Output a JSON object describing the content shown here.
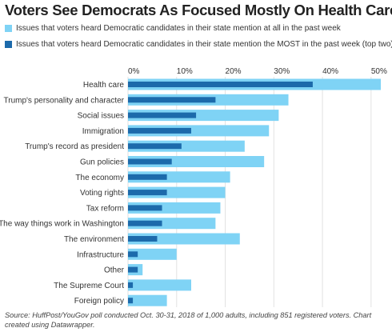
{
  "chart_data": {
    "type": "bar",
    "orientation": "horizontal",
    "title": "Voters See Democrats As Focused Mostly On Health Care",
    "categories": [
      "Health care",
      "Trump's personality and character",
      "Social issues",
      "Immigration",
      "Trump's record as president",
      "Gun policies",
      "The economy",
      "Voting rights",
      "Tax reform",
      "The way things work in Washington",
      "The environment",
      "Infrastructure",
      "Other",
      "The Supreme Court",
      "Foreign policy"
    ],
    "series": [
      {
        "name": "Issues that voters heard Democratic candidates in their state mention at all in the past week",
        "color": "#7fd3f5",
        "values": [
          52,
          33,
          31,
          29,
          24,
          28,
          21,
          20,
          19,
          18,
          23,
          10,
          3,
          13,
          8
        ]
      },
      {
        "name": "Issues that voters heard Democratic candidates in their state mention the MOST in the past week (top two)",
        "color": "#1c6aab",
        "values": [
          38,
          18,
          14,
          13,
          11,
          9,
          8,
          8,
          7,
          7,
          6,
          2,
          2,
          1,
          1
        ]
      }
    ],
    "xlim": [
      0,
      52
    ],
    "ticks": [
      0,
      10,
      20,
      30,
      40,
      50
    ],
    "tick_labels": [
      "0%",
      "10%",
      "20%",
      "30%",
      "40%",
      "50%"
    ],
    "grid": true,
    "legend_position": "top-left",
    "source": "Source: HuffPost/YouGov poll conducted Oct. 30-31, 2018 of 1,000 adults, including 851 registered voters. Chart created using Datawrapper."
  }
}
